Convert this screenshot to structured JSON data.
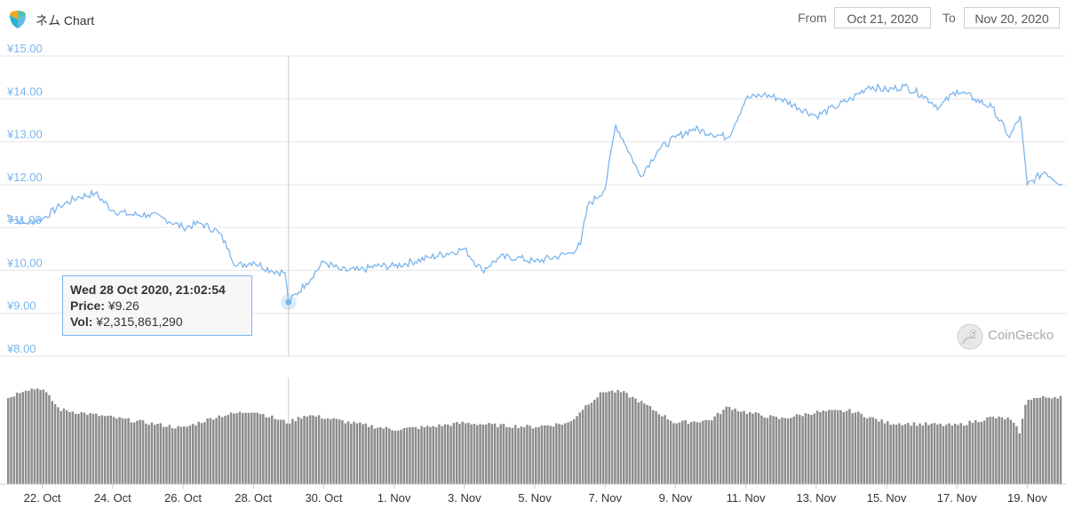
{
  "header": {
    "title": "ネム Chart",
    "from_label": "From",
    "from_value": "Oct 21, 2020",
    "to_label": "To",
    "to_value": "Nov 20, 2020"
  },
  "tooltip": {
    "date": "Wed 28 Oct 2020, 21:02:54",
    "price_label": "Price:",
    "price_value": "¥9.26",
    "vol_label": "Vol:",
    "vol_value": "¥2,315,861,290"
  },
  "watermark": "CoinGecko",
  "colors": {
    "line": "#7cb5ec",
    "grid": "#e6e6e6",
    "axis_text": "#7cb5ec",
    "volume": "#8c8c8c"
  },
  "chart_data": {
    "type": "line",
    "x_unit": "date (Oct 21 – Nov 20, 2020)",
    "ylim": [
      8,
      15
    ],
    "y_ticks": [
      "¥8.00",
      "¥9.00",
      "¥10.00",
      "¥11.00",
      "¥12.00",
      "¥13.00",
      "¥14.00",
      "¥15.00"
    ],
    "y_tick_values": [
      8,
      9,
      10,
      11,
      12,
      13,
      14,
      15
    ],
    "x_ticks": [
      "22. Oct",
      "24. Oct",
      "26. Oct",
      "28. Oct",
      "30. Oct",
      "1. Nov",
      "3. Nov",
      "5. Nov",
      "7. Nov",
      "9. Nov",
      "11. Nov",
      "13. Nov",
      "15. Nov",
      "17. Nov",
      "19. Nov"
    ],
    "x_tick_days": [
      1,
      3,
      5,
      7,
      9,
      11,
      13,
      15,
      17,
      19,
      21,
      23,
      25,
      27,
      29
    ],
    "price": {
      "x": [
        0,
        0.5,
        1,
        1.5,
        2,
        2.5,
        3,
        3.5,
        4,
        4.5,
        5,
        5.5,
        6,
        6.3,
        6.5,
        7,
        7.5,
        7.9,
        8,
        8.5,
        9,
        9.5,
        10,
        10.5,
        11,
        12,
        13,
        13.5,
        14,
        14.5,
        15,
        16,
        16.3,
        16.5,
        17,
        17.3,
        17.6,
        18,
        18.5,
        19,
        19.5,
        20,
        20.5,
        21,
        21.5,
        22,
        23,
        23.5,
        24,
        24.5,
        25,
        25.5,
        26,
        26.5,
        27,
        27.5,
        28,
        28.5,
        28.8,
        29,
        29.5,
        30
      ],
      "y": [
        11.3,
        11.1,
        11.2,
        11.5,
        11.7,
        11.8,
        11.4,
        11.3,
        11.3,
        11.2,
        11.0,
        11.1,
        10.9,
        10.5,
        10.1,
        10.2,
        10.0,
        9.95,
        9.26,
        9.7,
        10.2,
        10.0,
        10.0,
        10.1,
        10.1,
        10.3,
        10.5,
        10.0,
        10.3,
        10.3,
        10.2,
        10.4,
        10.6,
        11.5,
        11.9,
        13.4,
        12.9,
        12.2,
        12.8,
        13.1,
        13.3,
        13.2,
        13.1,
        14.0,
        14.1,
        14.0,
        13.6,
        13.8,
        14.0,
        14.3,
        14.2,
        14.3,
        14.1,
        13.8,
        14.2,
        14.0,
        13.8,
        13.1,
        13.6,
        12.0,
        12.3,
        12.0
      ]
    },
    "volume_billion_jpy": {
      "x": [
        0,
        0.5,
        1,
        1.5,
        2,
        3,
        4,
        5,
        6,
        7,
        8,
        8.5,
        9,
        10,
        11,
        12,
        13,
        14,
        15,
        16,
        16.5,
        17,
        17.5,
        18,
        19,
        20,
        20.5,
        21,
        22,
        23,
        24,
        25,
        26,
        27,
        28,
        28.5,
        28.8,
        29,
        30
      ],
      "y": [
        3.2,
        3.55,
        3.6,
        2.8,
        2.7,
        2.5,
        2.3,
        2.1,
        2.55,
        2.75,
        2.3,
        2.6,
        2.5,
        2.25,
        2.05,
        2.15,
        2.3,
        2.2,
        2.15,
        2.3,
        3.0,
        3.5,
        3.45,
        3.1,
        2.3,
        2.4,
        2.9,
        2.7,
        2.45,
        2.7,
        2.75,
        2.3,
        2.25,
        2.2,
        2.5,
        2.45,
        1.95,
        3.2,
        3.3
      ]
    }
  }
}
